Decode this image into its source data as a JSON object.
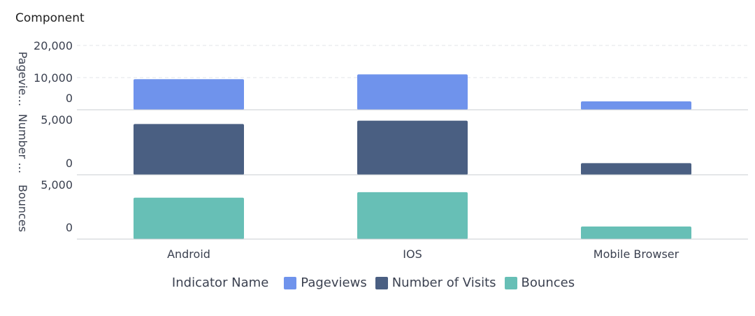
{
  "chart_data": {
    "type": "bar",
    "title": "Component",
    "categories": [
      "Android",
      "IOS",
      "Mobile Browser"
    ],
    "legend_title": "Indicator Name",
    "legend_position": "bottom",
    "grid": true,
    "panels": [
      {
        "name": "Pageviews",
        "axis_title": "Pagevie…",
        "color": "#6f93ec",
        "ylim": [
          0,
          20000
        ],
        "ticks": [
          0,
          10000,
          20000
        ],
        "tick_labels": [
          "0",
          "10,000",
          "20,000"
        ],
        "values": [
          9500,
          11000,
          2600
        ]
      },
      {
        "name": "Number of Visits",
        "axis_title": "Number …",
        "color": "#4a5f82",
        "ylim": [
          0,
          5000
        ],
        "ticks": [
          0,
          5000
        ],
        "tick_labels": [
          "0",
          "5,000"
        ],
        "values": [
          4600,
          4900,
          1050
        ]
      },
      {
        "name": "Bounces",
        "axis_title": "Bounces",
        "color": "#67bfb6",
        "ylim": [
          0,
          5000
        ],
        "ticks": [
          0,
          5000
        ],
        "tick_labels": [
          "0",
          "5,000"
        ],
        "values": [
          3800,
          4300,
          1150
        ]
      }
    ]
  }
}
